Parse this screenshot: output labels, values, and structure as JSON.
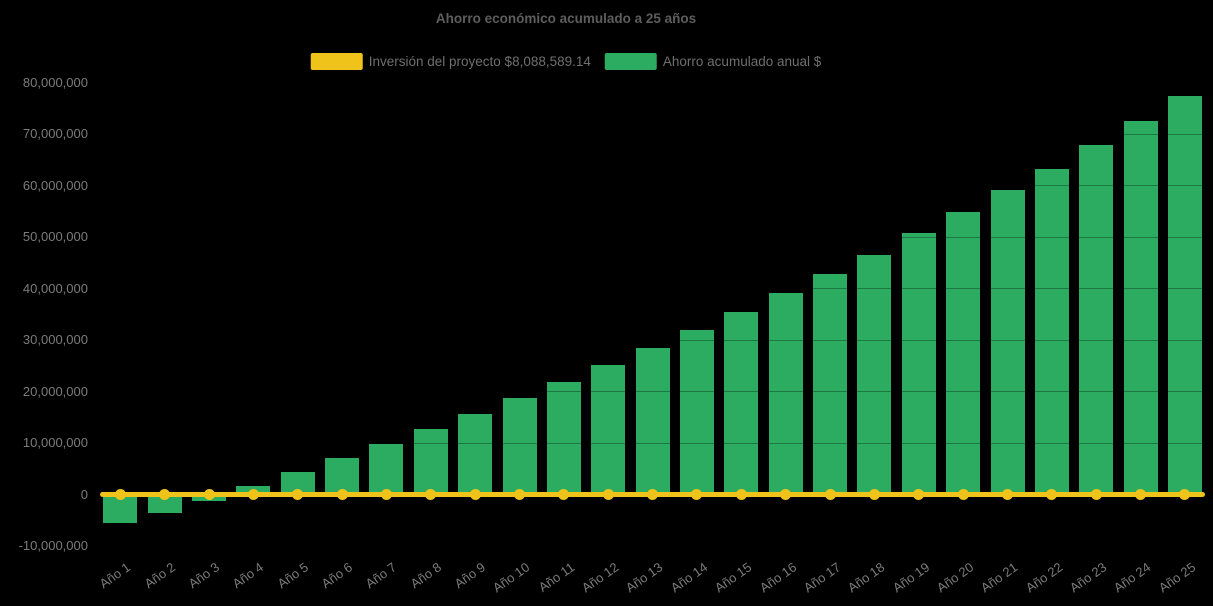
{
  "title": "Ahorro económico acumulado a 25 años",
  "colors": {
    "background": "#000000",
    "bar_green": "#2bac61",
    "line_yellow": "#efc319",
    "title_text": "#5d5d5d",
    "legend_text": "#6f6f6f",
    "axis_text": "#7b7b7b"
  },
  "legend": {
    "items": [
      {
        "label": "Inversión del proyecto $8,088,589.14",
        "color": "#efc319",
        "series_type": "line"
      },
      {
        "label": "Ahorro acumulado anual $",
        "color": "#2bac61",
        "series_type": "bar"
      }
    ]
  },
  "chart_data": {
    "type": "bar",
    "title": "Ahorro económico acumulado a 25 años",
    "categories": [
      "Año 1",
      "Año 2",
      "Año 3",
      "Año 4",
      "Año 5",
      "Año 6",
      "Año 7",
      "Año 8",
      "Año 9",
      "Año 10",
      "Año 11",
      "Año 12",
      "Año 13",
      "Año 14",
      "Año 15",
      "Año 16",
      "Año 17",
      "Año 18",
      "Año 19",
      "Año 20",
      "Año 21",
      "Año 22",
      "Año 23",
      "Año 24",
      "Año 25"
    ],
    "series": [
      {
        "name": "Ahorro acumulado anual $",
        "type": "bar",
        "color": "#2bac61",
        "values": [
          -5600000,
          -3600000,
          -1200000,
          1600000,
          4400000,
          7000000,
          9900000,
          12700000,
          15600000,
          18800000,
          21800000,
          25100000,
          28400000,
          31900000,
          35500000,
          39200000,
          42800000,
          46600000,
          50700000,
          54800000,
          59200000,
          63300000,
          67900000,
          72600000,
          77300000
        ]
      },
      {
        "name": "Inversión del proyecto $8,088,589.14",
        "type": "line",
        "color": "#efc319",
        "marker": "circle",
        "plotted_at_value": 0,
        "values": [
          0,
          0,
          0,
          0,
          0,
          0,
          0,
          0,
          0,
          0,
          0,
          0,
          0,
          0,
          0,
          0,
          0,
          0,
          0,
          0,
          0,
          0,
          0,
          0,
          0
        ]
      }
    ],
    "xlabel": "",
    "ylabel": "",
    "ylim": [
      -10000000,
      80000000
    ],
    "y_tick_step": 10000000,
    "y_tick_labels": [
      "80,000,000",
      "70,000,000",
      "60,000,000",
      "50,000,000",
      "40,000,000",
      "30,000,000",
      "20,000,000",
      "10,000,000",
      "0",
      "-10,000,000"
    ],
    "y_tick_values": [
      80000000,
      70000000,
      60000000,
      50000000,
      40000000,
      30000000,
      20000000,
      10000000,
      0,
      -10000000
    ],
    "grid": false,
    "legend_position": "top",
    "x_label_rotation_deg": -35
  }
}
